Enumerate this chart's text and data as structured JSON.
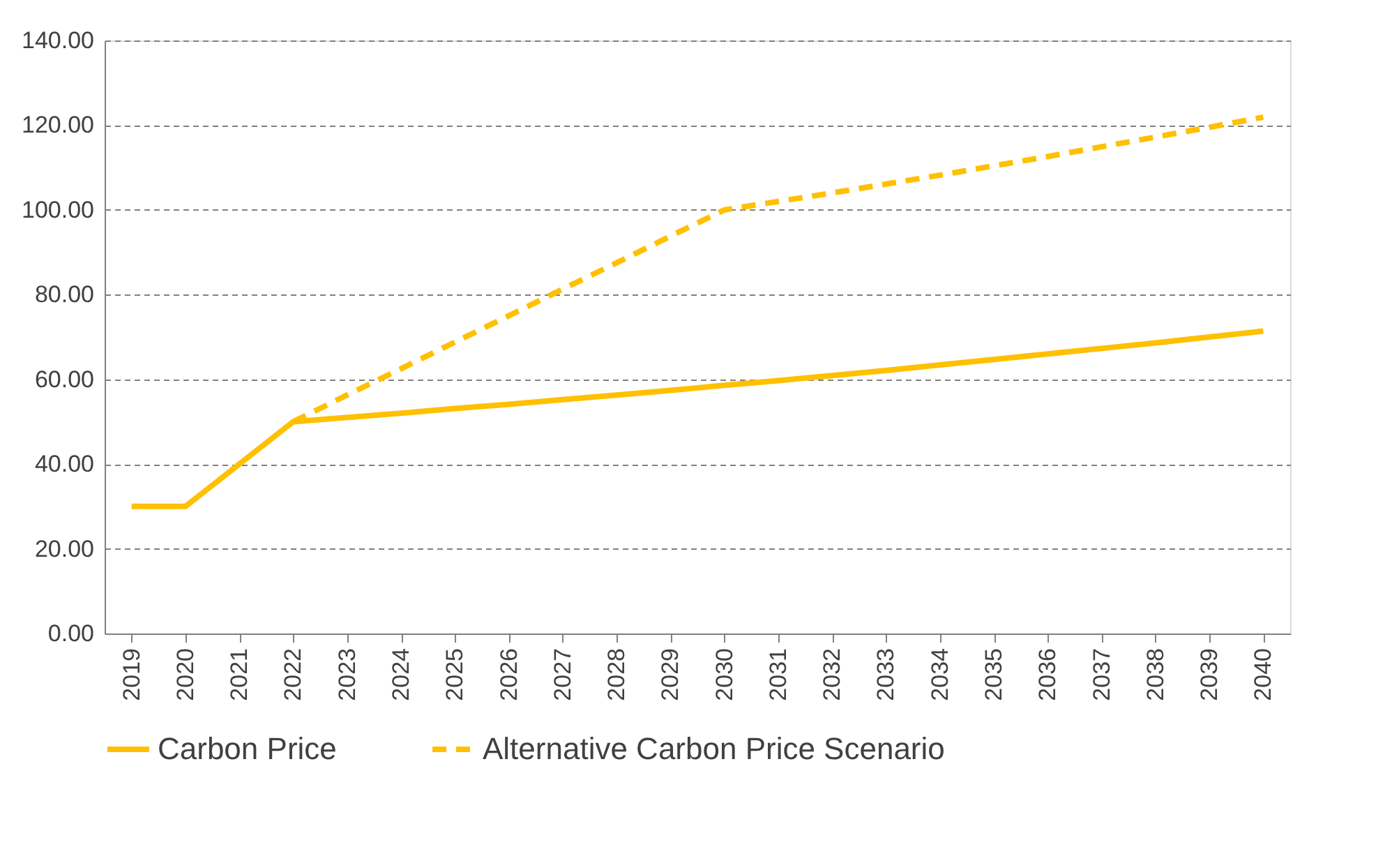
{
  "chart_data": {
    "type": "line",
    "categories": [
      "2019",
      "2020",
      "2021",
      "2022",
      "2023",
      "2024",
      "2025",
      "2026",
      "2027",
      "2028",
      "2029",
      "2030",
      "2031",
      "2032",
      "2033",
      "2034",
      "2035",
      "2036",
      "2037",
      "2038",
      "2039",
      "2040"
    ],
    "series": [
      {
        "name": "Carbon Price",
        "color": "#ffc000",
        "line_style": "solid",
        "values": [
          30,
          30,
          40,
          50,
          51,
          52,
          53.1,
          54.1,
          55.2,
          56.3,
          57.4,
          58.6,
          59.7,
          60.9,
          62.1,
          63.4,
          64.7,
          66,
          67.3,
          68.6,
          70,
          71.4
        ]
      },
      {
        "name": "Alternative Carbon Price Scenario",
        "color": "#ffc000",
        "line_style": "dashed",
        "values": [
          null,
          null,
          null,
          50,
          56.3,
          62.5,
          68.8,
          75,
          81.3,
          87.5,
          93.8,
          100,
          102,
          104,
          106.1,
          108.2,
          110.4,
          112.6,
          114.9,
          117.2,
          119.5,
          121.9
        ]
      }
    ],
    "ylim": [
      0,
      140
    ],
    "yticks": [
      {
        "value": 0,
        "label": "0.00"
      },
      {
        "value": 20,
        "label": "20.00"
      },
      {
        "value": 40,
        "label": "40.00"
      },
      {
        "value": 60,
        "label": "60.00"
      },
      {
        "value": 80,
        "label": "80.00"
      },
      {
        "value": 100,
        "label": "100.00"
      },
      {
        "value": 120,
        "label": "120.00"
      },
      {
        "value": 140,
        "label": "140.00"
      }
    ],
    "grid": "y",
    "legend": "bottom",
    "marker": "none"
  }
}
